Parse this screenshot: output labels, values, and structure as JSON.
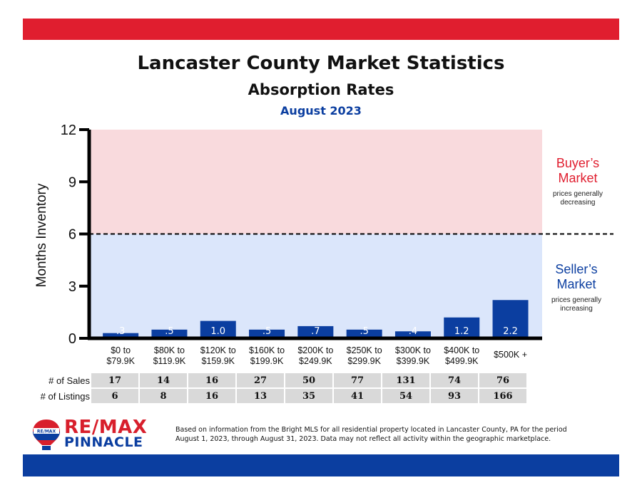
{
  "title": "Lancaster County Market Statistics",
  "subtitle": "Absorption Rates",
  "period": "August 2023",
  "colors": {
    "top_band": "#e01e2f",
    "bottom_band": "#0b3ea0",
    "buyers_zone": "#f9dadd",
    "sellers_zone": "#dbe6fb",
    "bar": "#0b3ea0",
    "buyers_text": "#e01e2f",
    "sellers_text": "#0b3ea0"
  },
  "zones": {
    "buyers": {
      "title_line1": "Buyer’s",
      "title_line2": "Market",
      "note_line1": "prices generally",
      "note_line2": "decreasing"
    },
    "sellers": {
      "title_line1": "Seller’s",
      "title_line2": "Market",
      "note_line1": "prices generally",
      "note_line2": "increasing"
    }
  },
  "chart_data": {
    "type": "bar",
    "ylabel": "Months Inventory",
    "ylim": [
      0,
      12
    ],
    "yticks": [
      0,
      3,
      6,
      9,
      12
    ],
    "threshold": 6,
    "categories": [
      [
        "$0 to",
        "$79.9K"
      ],
      [
        "$80K to",
        "$119.9K"
      ],
      [
        "$120K to",
        "$159.9K"
      ],
      [
        "$160K to",
        "$199.9K"
      ],
      [
        "$200K to",
        "$249.9K"
      ],
      [
        "$250K to",
        "$299.9K"
      ],
      [
        "$300K to",
        "$399.9K"
      ],
      [
        "$400K to",
        "$499.9K"
      ],
      [
        "$500K +"
      ]
    ],
    "values": [
      0.3,
      0.5,
      1.0,
      0.5,
      0.7,
      0.5,
      0.4,
      1.2,
      2.2
    ],
    "data_labels": [
      ".3",
      ".5",
      "1.0",
      ".5",
      ".7",
      ".5",
      ".4",
      "1.2",
      "2.2"
    ],
    "grid": false,
    "legend": "none"
  },
  "stats": {
    "sales_label": "# of Sales",
    "listings_label": "# of Listings",
    "sales": [
      "17",
      "14",
      "16",
      "27",
      "50",
      "77",
      "131",
      "74",
      "76"
    ],
    "listings": [
      "6",
      "8",
      "16",
      "13",
      "35",
      "41",
      "54",
      "93",
      "166"
    ]
  },
  "logo": {
    "balloon_text": "RE/MAX",
    "brand": "RE/MAX",
    "office": "PINNACLE"
  },
  "source_line1": "Based on information from the Bright MLS for all residential property located in Lancaster County, PA for the period",
  "source_line2": "August 1, 2023, through August 31, 2023.  Data may not reflect all activity within the geographic marketplace."
}
